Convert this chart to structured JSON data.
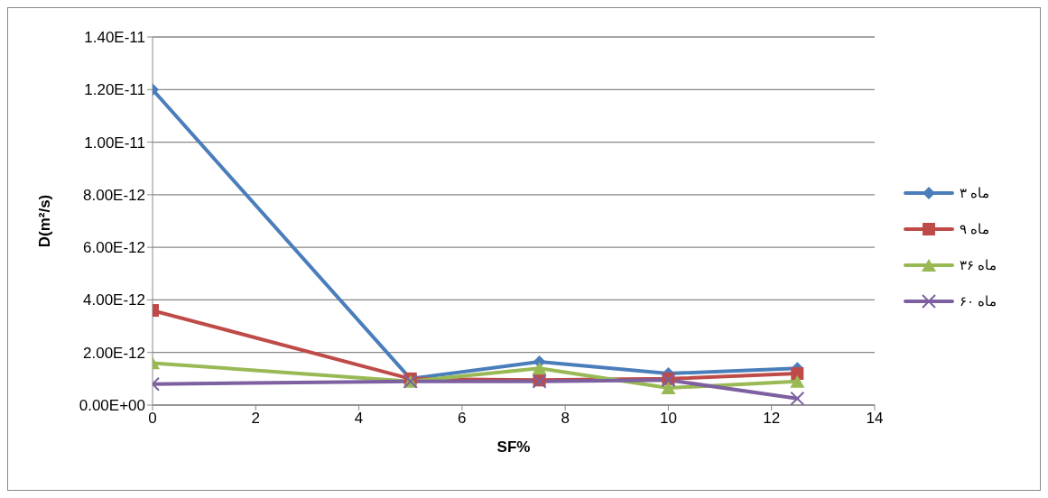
{
  "chart_data": {
    "type": "line",
    "xlabel": "SF%",
    "ylabel": "D(m²/s)",
    "x": [
      0,
      5,
      7.5,
      10,
      12.5
    ],
    "series": [
      {
        "name": "ماه ۳",
        "color": "#4a7ebb",
        "marker": "diamond",
        "values": [
          1.2e-11,
          1e-12,
          1.65e-12,
          1.2e-12,
          1.4e-12
        ]
      },
      {
        "name": "ماه ۹",
        "color": "#be4b48",
        "marker": "square",
        "values": [
          3.6e-12,
          1e-12,
          9.5e-13,
          1e-12,
          1.2e-12
        ]
      },
      {
        "name": "ماه ۳۶",
        "color": "#98b954",
        "marker": "triangle",
        "values": [
          1.6e-12,
          9e-13,
          1.4e-12,
          6.5e-13,
          9e-13
        ]
      },
      {
        "name": "ماه ۶۰",
        "color": "#7d60a0",
        "marker": "cross",
        "values": [
          8e-13,
          9e-13,
          9e-13,
          9.5e-13,
          2.5e-13
        ]
      }
    ],
    "xlim": [
      0,
      14
    ],
    "xticks": [
      0,
      2,
      4,
      6,
      8,
      10,
      12,
      14
    ],
    "ylim": [
      0,
      1.4e-11
    ],
    "yticks": [
      {
        "value": 0,
        "label": "0.00E+00"
      },
      {
        "value": 2e-12,
        "label": "2.00E-12"
      },
      {
        "value": 4e-12,
        "label": "4.00E-12"
      },
      {
        "value": 6e-12,
        "label": "6.00E-12"
      },
      {
        "value": 8e-12,
        "label": "8.00E-12"
      },
      {
        "value": 1e-11,
        "label": "1.00E-11"
      },
      {
        "value": 1.2e-11,
        "label": "1.20E-11"
      },
      {
        "value": 1.4e-11,
        "label": "1.40E-11"
      }
    ],
    "grid": "y",
    "legend": "right"
  }
}
